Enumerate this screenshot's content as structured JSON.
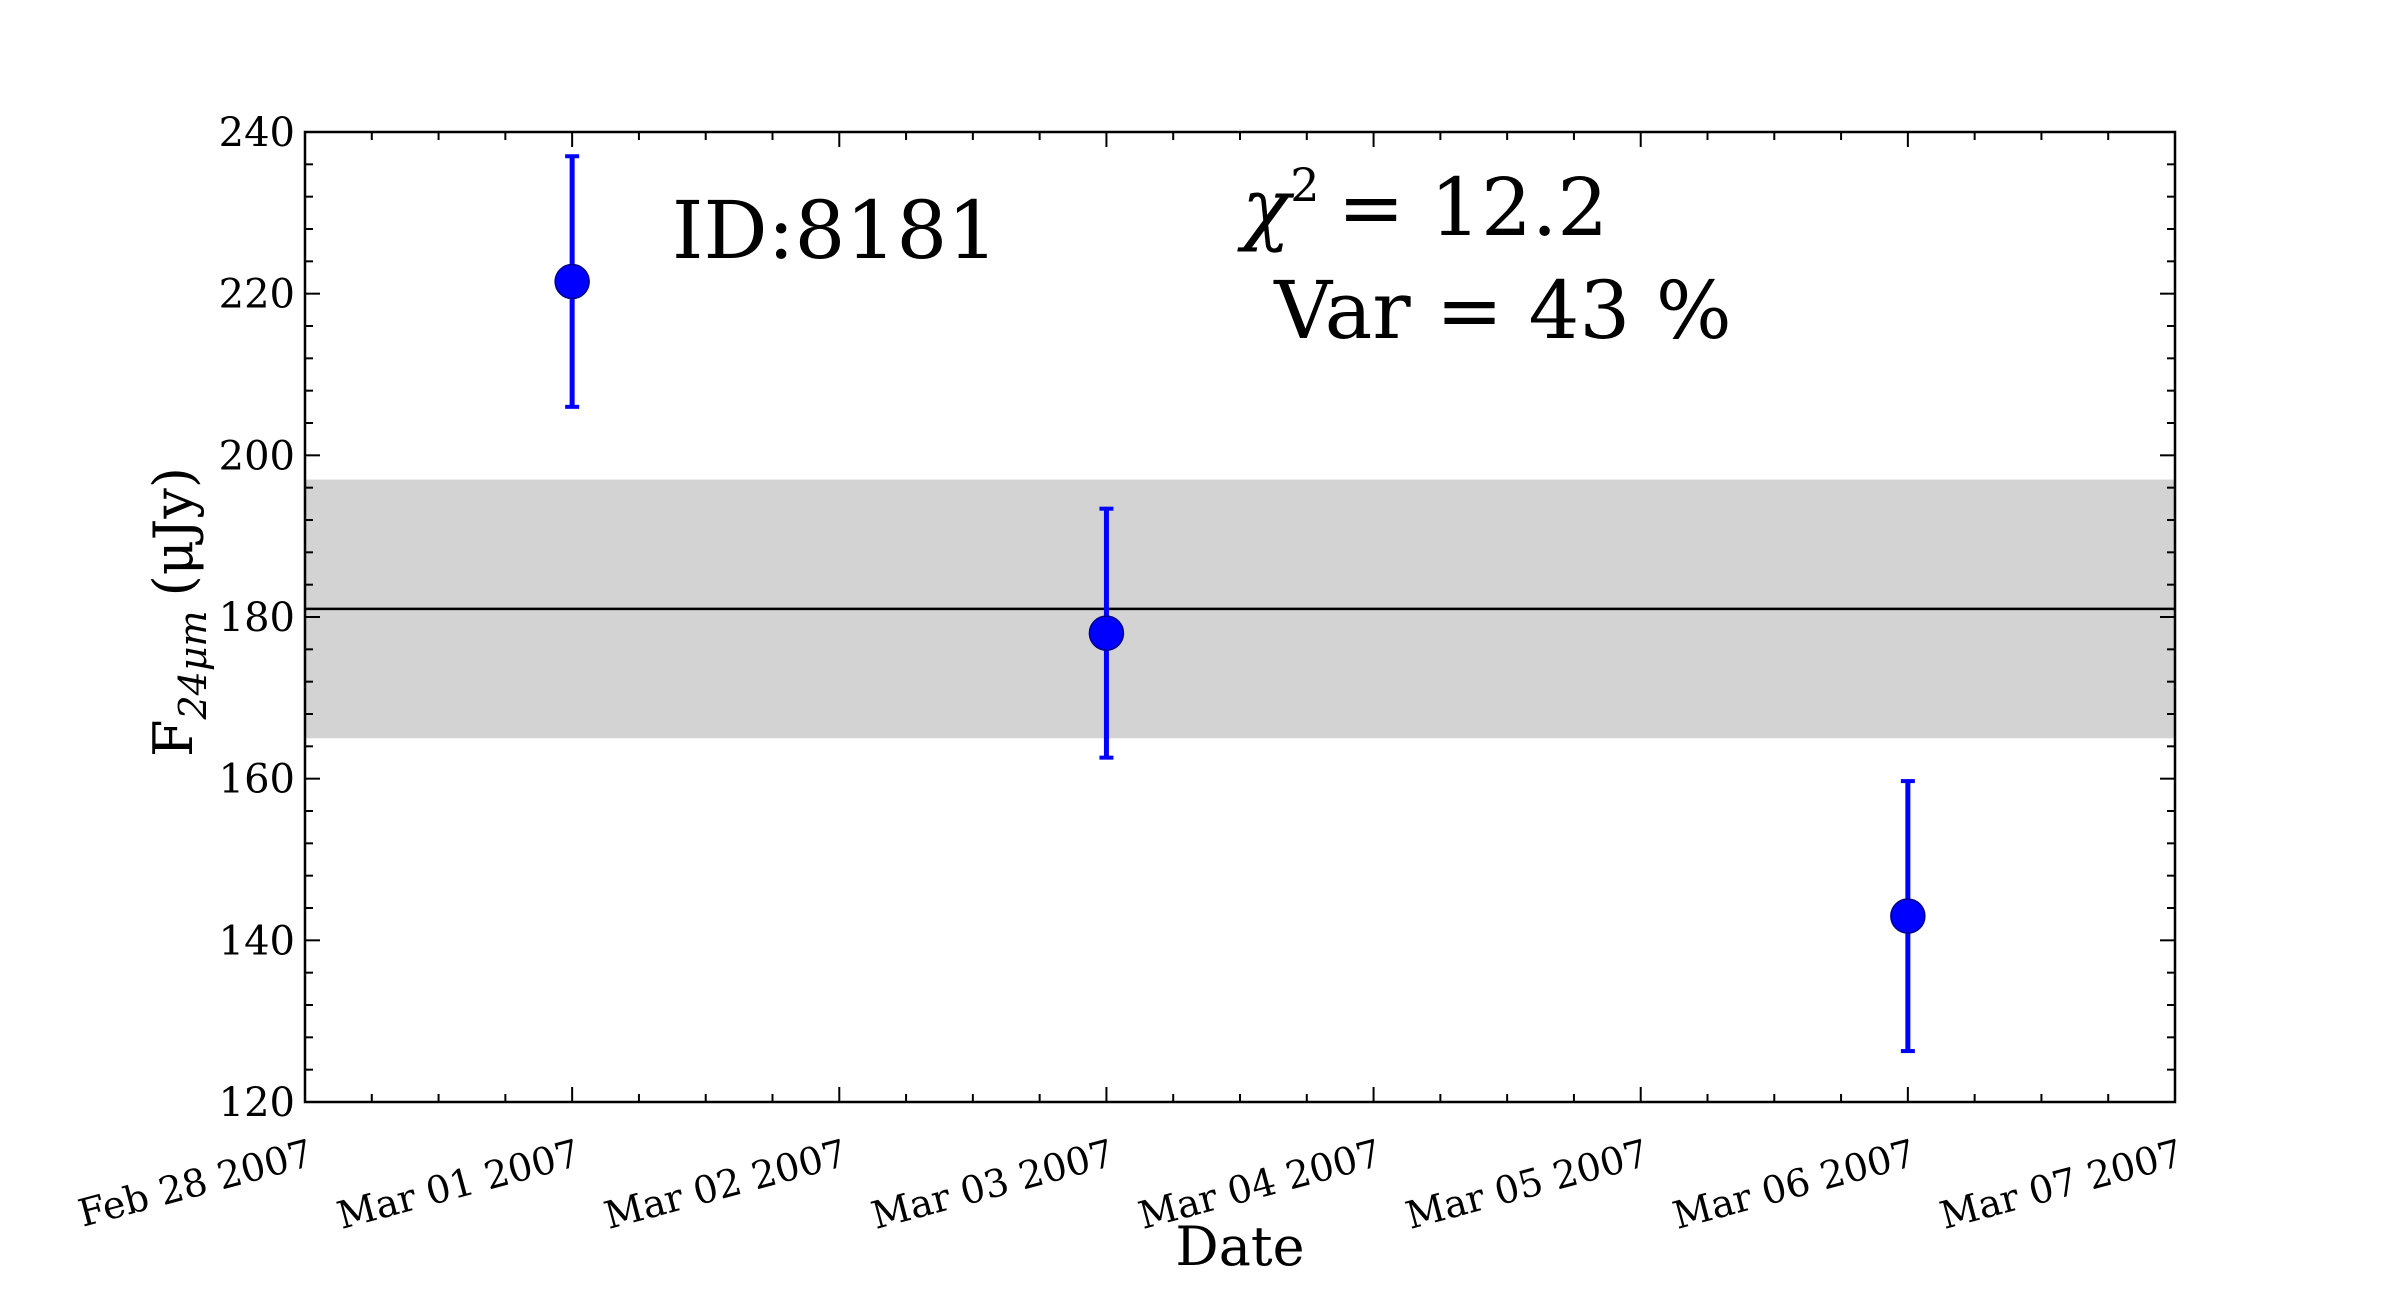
{
  "chart_data": {
    "type": "scatter",
    "title": "",
    "xlabel": "Date",
    "ylabel": {
      "prefix": "F",
      "subscript": "24μm",
      "unit": "(μJy)"
    },
    "ylim": [
      120,
      240
    ],
    "y_ticks": [
      120,
      140,
      160,
      180,
      200,
      220,
      240
    ],
    "y_tick_labels": [
      "120",
      "140",
      "160",
      "180",
      "200",
      "220",
      "240"
    ],
    "xlim": [
      "2007-02-28",
      "2007-03-07"
    ],
    "x_ticks": [
      "2007-02-28",
      "2007-03-01",
      "2007-03-02",
      "2007-03-03",
      "2007-03-04",
      "2007-03-05",
      "2007-03-06",
      "2007-03-07"
    ],
    "x_tick_labels": [
      "Feb 28 2007",
      "Mar 01 2007",
      "Mar 02 2007",
      "Mar 03 2007",
      "Mar 04 2007",
      "Mar 05 2007",
      "Mar 06 2007",
      "Mar 07 2007"
    ],
    "grid": false,
    "series": [
      {
        "points": [
          {
            "x": "2007-03-01",
            "y": 221.5,
            "yerr": 15.5
          },
          {
            "x": "2007-03-03",
            "y": 178.0,
            "yerr": 15.4
          },
          {
            "x": "2007-03-06",
            "y": 143.0,
            "yerr": 16.7
          }
        ],
        "color": "#0000ff"
      }
    ],
    "mean_line": {
      "y": 181,
      "color": "#000000"
    },
    "band": {
      "low": 165,
      "high": 197,
      "color": "#d3d3d3"
    },
    "annotations": {
      "id_label": "ID:8181",
      "chi2_symbol": "χ",
      "chi2_exponent": "2",
      "chi2_text": "= 12.2",
      "var_text": "Var = 43 %"
    }
  }
}
